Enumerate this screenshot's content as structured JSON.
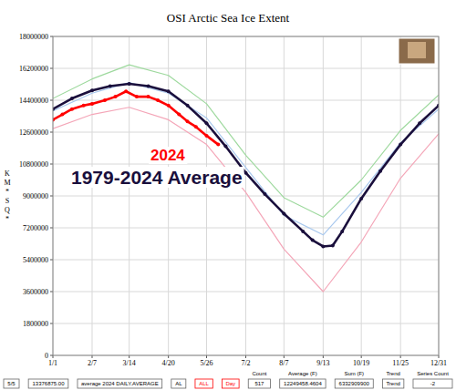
{
  "chart_data": {
    "type": "line",
    "title": "OSI Arctic Sea Ice Extent",
    "y_label": "KM*SQ*",
    "xlim": [
      1,
      365
    ],
    "xticks": [
      {
        "value": 1,
        "label": "1/1"
      },
      {
        "value": 38,
        "label": "2/7"
      },
      {
        "value": 73,
        "label": "3/14"
      },
      {
        "value": 110,
        "label": "4/20"
      },
      {
        "value": 146,
        "label": "5/26"
      },
      {
        "value": 183,
        "label": "7/2"
      },
      {
        "value": 219,
        "label": "8/7"
      },
      {
        "value": 256,
        "label": "9/13"
      },
      {
        "value": 292,
        "label": "10/19"
      },
      {
        "value": 329,
        "label": "11/25"
      },
      {
        "value": 365,
        "label": "12/31"
      }
    ],
    "ylim": [
      0,
      18000000
    ],
    "yticks": [
      0,
      1800000,
      3600000,
      5400000,
      7200000,
      9000000,
      10800000,
      12600000,
      14400000,
      16200000,
      18000000
    ],
    "grid": true,
    "series": [
      {
        "color": "#9ed99e",
        "x": [
          1,
          38,
          73,
          110,
          146,
          183,
          219,
          256,
          292,
          329,
          365
        ],
        "values": [
          14500000,
          15600000,
          16400000,
          15800000,
          14200000,
          11300000,
          8900000,
          7800000,
          9900000,
          12700000,
          14700000
        ]
      },
      {
        "color": "#f4a6b8",
        "x": [
          1,
          38,
          73,
          110,
          146,
          183,
          219,
          256,
          292,
          329,
          365
        ],
        "values": [
          12800000,
          13600000,
          14000000,
          13300000,
          11900000,
          9200000,
          6000000,
          3600000,
          6400000,
          10000000,
          12500000
        ]
      },
      {
        "color": "#a8c8ee",
        "x": [
          1,
          38,
          73,
          110,
          146,
          183,
          219,
          256,
          292,
          329,
          365
        ],
        "values": [
          13800000,
          14800000,
          15400000,
          14800000,
          13400000,
          10600000,
          7900000,
          6800000,
          9200000,
          12000000,
          13900000
        ]
      },
      {
        "name": "1979-2024 Average",
        "color": "#1a0f3c",
        "marker": "circle",
        "x": [
          1,
          19,
          38,
          55,
          73,
          91,
          110,
          128,
          146,
          164,
          183,
          201,
          219,
          237,
          246,
          256,
          265,
          274,
          292,
          310,
          329,
          347,
          365
        ],
        "values": [
          13900000,
          14500000,
          14950000,
          15200000,
          15330000,
          15200000,
          14900000,
          14100000,
          13100000,
          11800000,
          10300000,
          9100000,
          8000000,
          7000000,
          6500000,
          6150000,
          6200000,
          7000000,
          8850000,
          10400000,
          11900000,
          13100000,
          14100000
        ]
      },
      {
        "name": "2024",
        "color": "#ff0000",
        "marker": "circle",
        "x": [
          1,
          10,
          19,
          30,
          38,
          50,
          60,
          70,
          80,
          91,
          100,
          110,
          120,
          128,
          136,
          146,
          157
        ],
        "values": [
          13300000,
          13600000,
          13900000,
          14100000,
          14200000,
          14400000,
          14600000,
          14900000,
          14600000,
          14600000,
          14400000,
          14100000,
          13600000,
          13200000,
          12900000,
          12400000,
          11900000
        ]
      }
    ],
    "footer": [
      {
        "value": "5/5"
      },
      {
        "value": "13376875.00"
      },
      {
        "value": "average 2024 DAILY.AVERAGE"
      },
      {
        "value": "AL"
      },
      {
        "value": "ALL",
        "color": "#ff0000"
      },
      {
        "value": "Day",
        "color": "#ff0000"
      },
      {
        "label": "Count",
        "value": "517"
      },
      {
        "label": "Average (F)",
        "value": "12249458.4604"
      },
      {
        "label": "Sum (F)",
        "value": "6332909900"
      },
      {
        "label": "Trend",
        "value": "Trend"
      },
      {
        "label": "Series Count",
        "value": "-2"
      }
    ]
  }
}
